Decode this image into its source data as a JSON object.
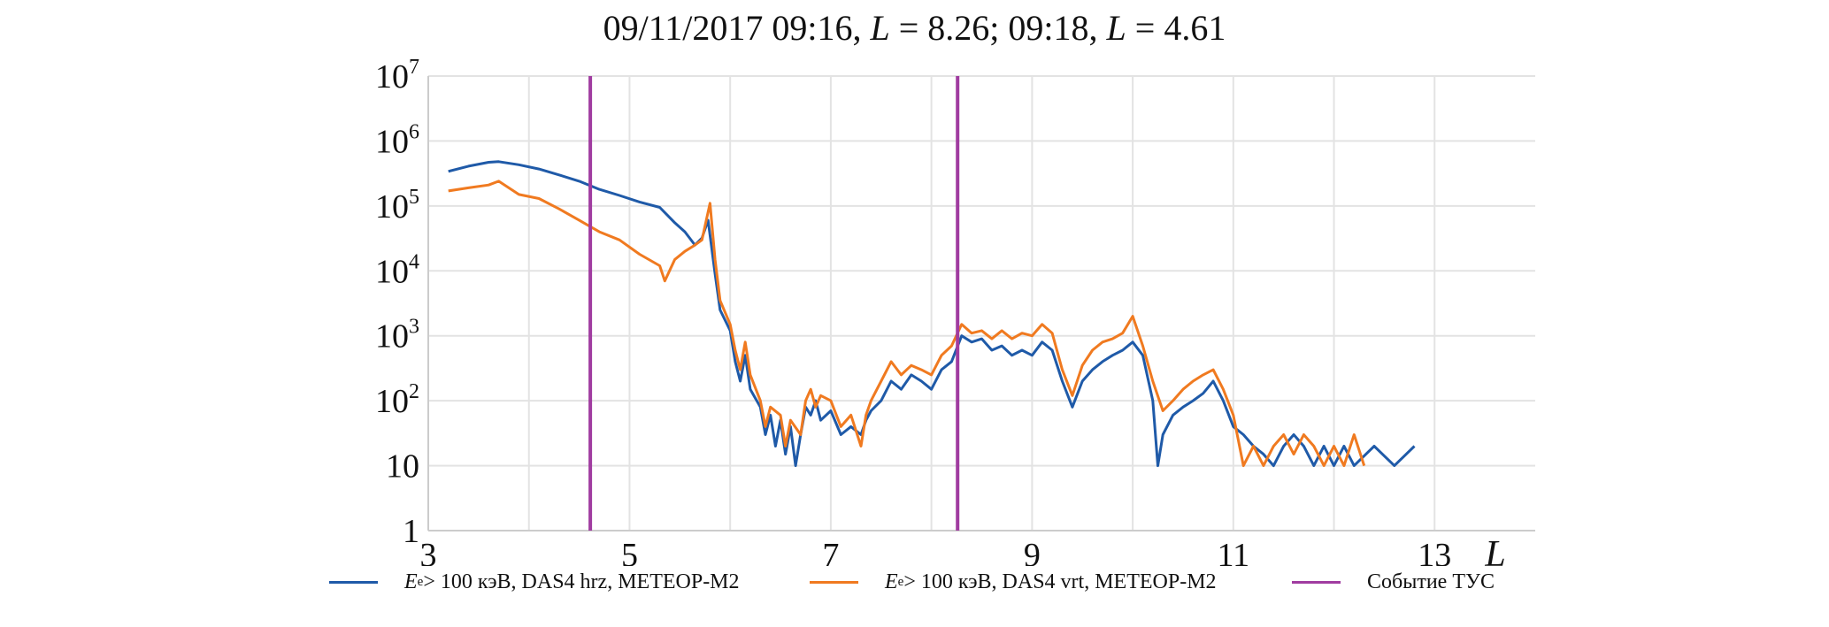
{
  "chart_data": {
    "type": "line",
    "title": {
      "date_time": "09/11/2017 09:16,",
      "L_symbol_1": "L",
      "value_1": "= 8.26; 09:18,",
      "L_symbol_2": "L",
      "value_2": "= 4.61"
    },
    "xlabel": "L",
    "ylabel": "",
    "x_scale": "linear",
    "y_scale": "log",
    "xlim": [
      3,
      14
    ],
    "ylim": [
      1,
      10000000
    ],
    "x_ticks": [
      3,
      5,
      7,
      9,
      11,
      13
    ],
    "y_ticks": [
      {
        "value": 1,
        "base": "1",
        "exp": ""
      },
      {
        "value": 10,
        "base": "10",
        "exp": ""
      },
      {
        "value": 100,
        "base": "10",
        "exp": "2"
      },
      {
        "value": 1000,
        "base": "10",
        "exp": "3"
      },
      {
        "value": 10000,
        "base": "10",
        "exp": "4"
      },
      {
        "value": 100000,
        "base": "10",
        "exp": "5"
      },
      {
        "value": 1000000,
        "base": "10",
        "exp": "6"
      },
      {
        "value": 10000000,
        "base": "10",
        "exp": "7"
      }
    ],
    "x_minor_grid": [
      4,
      6,
      8,
      10,
      12
    ],
    "grid": true,
    "legend_position": "bottom",
    "colors": {
      "hrz": "#1f5aa8",
      "vrt": "#f07a20",
      "event": "#a03ca0",
      "grid": "#e3e3e3"
    },
    "series": [
      {
        "key": "hrz",
        "legend": {
          "symbol": "E",
          "sub": "e",
          "text": " > 100 кэВ, DAS4 hrz, МЕТЕОР-М2"
        },
        "points": [
          [
            3.2,
            340000
          ],
          [
            3.4,
            410000
          ],
          [
            3.6,
            470000
          ],
          [
            3.7,
            480000
          ],
          [
            3.9,
            430000
          ],
          [
            4.1,
            370000
          ],
          [
            4.3,
            300000
          ],
          [
            4.5,
            240000
          ],
          [
            4.7,
            180000
          ],
          [
            4.9,
            145000
          ],
          [
            5.1,
            115000
          ],
          [
            5.3,
            95000
          ],
          [
            5.45,
            55000
          ],
          [
            5.55,
            40000
          ],
          [
            5.65,
            25000
          ],
          [
            5.72,
            32000
          ],
          [
            5.78,
            60000
          ],
          [
            5.85,
            9000
          ],
          [
            5.9,
            2500
          ],
          [
            6.0,
            1200
          ],
          [
            6.05,
            400
          ],
          [
            6.1,
            200
          ],
          [
            6.15,
            500
          ],
          [
            6.2,
            150
          ],
          [
            6.3,
            80
          ],
          [
            6.35,
            30
          ],
          [
            6.4,
            60
          ],
          [
            6.45,
            20
          ],
          [
            6.5,
            50
          ],
          [
            6.55,
            15
          ],
          [
            6.6,
            40
          ],
          [
            6.65,
            10
          ],
          [
            6.7,
            30
          ],
          [
            6.75,
            80
          ],
          [
            6.8,
            60
          ],
          [
            6.85,
            100
          ],
          [
            6.9,
            50
          ],
          [
            7.0,
            70
          ],
          [
            7.1,
            30
          ],
          [
            7.2,
            40
          ],
          [
            7.3,
            30
          ],
          [
            7.35,
            50
          ],
          [
            7.4,
            70
          ],
          [
            7.5,
            100
          ],
          [
            7.6,
            200
          ],
          [
            7.7,
            150
          ],
          [
            7.8,
            250
          ],
          [
            7.9,
            200
          ],
          [
            8.0,
            150
          ],
          [
            8.1,
            300
          ],
          [
            8.2,
            400
          ],
          [
            8.3,
            1000
          ],
          [
            8.4,
            800
          ],
          [
            8.5,
            900
          ],
          [
            8.6,
            600
          ],
          [
            8.7,
            700
          ],
          [
            8.8,
            500
          ],
          [
            8.9,
            600
          ],
          [
            9.0,
            500
          ],
          [
            9.1,
            800
          ],
          [
            9.2,
            600
          ],
          [
            9.3,
            200
          ],
          [
            9.4,
            80
          ],
          [
            9.5,
            200
          ],
          [
            9.6,
            300
          ],
          [
            9.7,
            400
          ],
          [
            9.8,
            500
          ],
          [
            9.9,
            600
          ],
          [
            10.0,
            800
          ],
          [
            10.1,
            500
          ],
          [
            10.2,
            100
          ],
          [
            10.25,
            10
          ],
          [
            10.3,
            30
          ],
          [
            10.4,
            60
          ],
          [
            10.5,
            80
          ],
          [
            10.6,
            100
          ],
          [
            10.7,
            130
          ],
          [
            10.8,
            200
          ],
          [
            10.9,
            100
          ],
          [
            11.0,
            40
          ],
          [
            11.1,
            30
          ],
          [
            11.2,
            20
          ],
          [
            11.3,
            15
          ],
          [
            11.4,
            10
          ],
          [
            11.5,
            20
          ],
          [
            11.6,
            30
          ],
          [
            11.7,
            20
          ],
          [
            11.8,
            10
          ],
          [
            11.9,
            20
          ],
          [
            12.0,
            10
          ],
          [
            12.1,
            20
          ],
          [
            12.2,
            10
          ],
          [
            12.4,
            20
          ],
          [
            12.6,
            10
          ],
          [
            12.8,
            20
          ]
        ]
      },
      {
        "key": "vrt",
        "legend": {
          "symbol": "E",
          "sub": "e",
          "text": " > 100 кэВ, DAS4 vrt, МЕТЕОР-М2"
        },
        "points": [
          [
            3.2,
            170000
          ],
          [
            3.4,
            190000
          ],
          [
            3.6,
            210000
          ],
          [
            3.7,
            240000
          ],
          [
            3.9,
            150000
          ],
          [
            4.1,
            130000
          ],
          [
            4.3,
            90000
          ],
          [
            4.5,
            60000
          ],
          [
            4.7,
            40000
          ],
          [
            4.9,
            30000
          ],
          [
            5.1,
            18000
          ],
          [
            5.3,
            12000
          ],
          [
            5.35,
            7000
          ],
          [
            5.45,
            15000
          ],
          [
            5.55,
            20000
          ],
          [
            5.65,
            25000
          ],
          [
            5.72,
            30000
          ],
          [
            5.8,
            110000
          ],
          [
            5.85,
            15000
          ],
          [
            5.9,
            3500
          ],
          [
            6.0,
            1500
          ],
          [
            6.05,
            600
          ],
          [
            6.1,
            300
          ],
          [
            6.15,
            800
          ],
          [
            6.2,
            250
          ],
          [
            6.3,
            100
          ],
          [
            6.35,
            40
          ],
          [
            6.4,
            80
          ],
          [
            6.5,
            60
          ],
          [
            6.55,
            20
          ],
          [
            6.6,
            50
          ],
          [
            6.7,
            30
          ],
          [
            6.75,
            100
          ],
          [
            6.8,
            150
          ],
          [
            6.85,
            80
          ],
          [
            6.9,
            120
          ],
          [
            7.0,
            100
          ],
          [
            7.1,
            40
          ],
          [
            7.2,
            60
          ],
          [
            7.3,
            20
          ],
          [
            7.35,
            60
          ],
          [
            7.4,
            100
          ],
          [
            7.5,
            200
          ],
          [
            7.6,
            400
          ],
          [
            7.7,
            250
          ],
          [
            7.8,
            350
          ],
          [
            7.9,
            300
          ],
          [
            8.0,
            250
          ],
          [
            8.1,
            500
          ],
          [
            8.2,
            700
          ],
          [
            8.3,
            1500
          ],
          [
            8.4,
            1100
          ],
          [
            8.5,
            1200
          ],
          [
            8.6,
            900
          ],
          [
            8.7,
            1200
          ],
          [
            8.8,
            900
          ],
          [
            8.9,
            1100
          ],
          [
            9.0,
            1000
          ],
          [
            9.1,
            1500
          ],
          [
            9.2,
            1100
          ],
          [
            9.3,
            300
          ],
          [
            9.4,
            120
          ],
          [
            9.5,
            350
          ],
          [
            9.6,
            600
          ],
          [
            9.7,
            800
          ],
          [
            9.8,
            900
          ],
          [
            9.9,
            1100
          ],
          [
            10.0,
            2000
          ],
          [
            10.1,
            700
          ],
          [
            10.2,
            200
          ],
          [
            10.3,
            70
          ],
          [
            10.4,
            100
          ],
          [
            10.5,
            150
          ],
          [
            10.6,
            200
          ],
          [
            10.7,
            250
          ],
          [
            10.8,
            300
          ],
          [
            10.9,
            150
          ],
          [
            11.0,
            60
          ],
          [
            11.1,
            10
          ],
          [
            11.2,
            20
          ],
          [
            11.3,
            10
          ],
          [
            11.4,
            20
          ],
          [
            11.5,
            30
          ],
          [
            11.6,
            15
          ],
          [
            11.7,
            30
          ],
          [
            11.8,
            20
          ],
          [
            11.9,
            10
          ],
          [
            12.0,
            20
          ],
          [
            12.1,
            10
          ],
          [
            12.2,
            30
          ],
          [
            12.3,
            10
          ]
        ]
      }
    ],
    "events": {
      "legend": "Событие ТУС",
      "x": [
        4.61,
        8.26
      ]
    }
  }
}
